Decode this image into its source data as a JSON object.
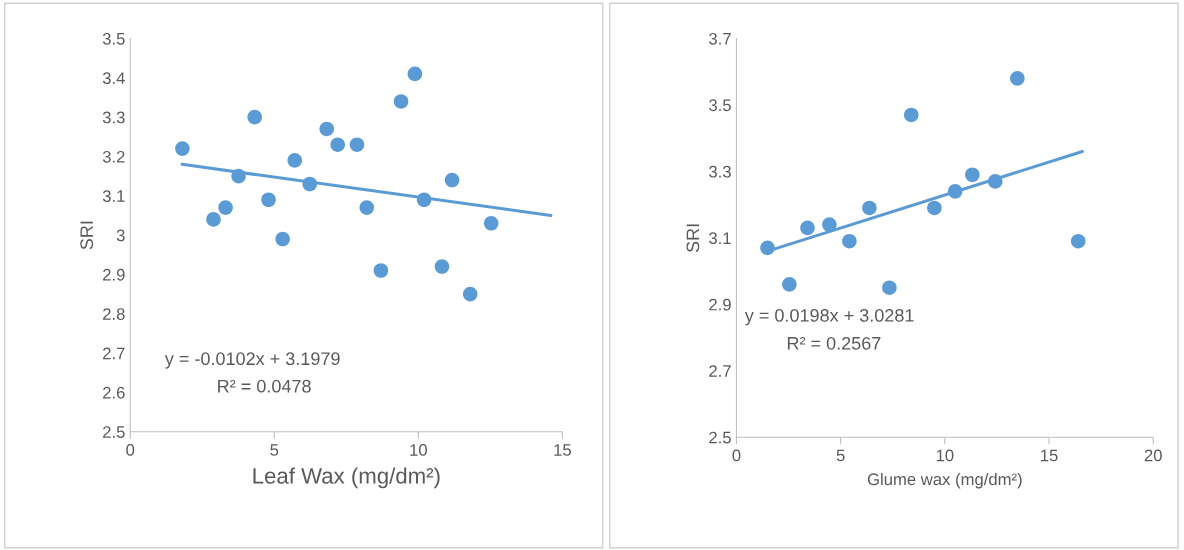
{
  "chart_data": [
    {
      "type": "scatter",
      "xlabel": "Leaf Wax (mg/dm²)",
      "ylabel": "SRI",
      "xlim": [
        0,
        15
      ],
      "xticks": [
        0,
        5,
        10,
        15
      ],
      "ylim": [
        2.5,
        3.5
      ],
      "yticks": [
        {
          "value": 2.5,
          "label": "2.5"
        },
        {
          "value": 2.6,
          "label": "2.6"
        },
        {
          "value": 2.7,
          "label": "2.7"
        },
        {
          "value": 2.8,
          "label": "2.8"
        },
        {
          "value": 2.9,
          "label": "2.9"
        },
        {
          "value": 3,
          "label": "3"
        },
        {
          "value": 3.1,
          "label": "3.1"
        },
        {
          "value": 3.2,
          "label": "3.2"
        },
        {
          "value": 3.3,
          "label": "3.3"
        },
        {
          "value": 3.4,
          "label": "3.4"
        },
        {
          "value": 3.5,
          "label": "3.5"
        }
      ],
      "grid": false,
      "legend": false,
      "series": [
        {
          "marker": "circle",
          "color": "#5b9bd5",
          "x": [
            1.81,
            2.89,
            3.31,
            3.76,
            4.32,
            4.8,
            5.29,
            5.71,
            6.23,
            6.82,
            7.2,
            7.87,
            8.21,
            8.7,
            9.4,
            9.88,
            10.2,
            10.82,
            11.17,
            11.8,
            12.53
          ],
          "values": [
            3.22,
            3.04,
            3.07,
            3.15,
            3.3,
            3.09,
            2.99,
            3.19,
            3.13,
            3.27,
            3.23,
            3.23,
            3.07,
            2.91,
            3.34,
            3.41,
            3.09,
            2.92,
            3.14,
            2.85,
            3.03
          ]
        },
        {
          "type": "line",
          "color": "#5b9bd5",
          "x": [
            1.8,
            14.6
          ],
          "values": [
            3.18,
            3.05
          ]
        }
      ],
      "annotations": [
        "y = -0.0102x + 3.1979",
        "R² = 0.0478"
      ]
    },
    {
      "type": "scatter",
      "xlabel": "Glume wax (mg/dm²)",
      "ylabel": "SRI",
      "xlim": [
        0,
        20
      ],
      "xticks": [
        0,
        5,
        10,
        15,
        20
      ],
      "ylim": [
        2.5,
        3.7
      ],
      "yticks": [
        2.5,
        2.7,
        2.9,
        3.1,
        3.3,
        3.5,
        3.7
      ],
      "grid": false,
      "legend": false,
      "series": [
        {
          "marker": "circle",
          "color": "#5b9bd5",
          "x": [
            1.49,
            2.54,
            3.41,
            4.46,
            5.42,
            6.38,
            7.34,
            8.39,
            9.5,
            10.5,
            11.32,
            12.42,
            13.48,
            16.4
          ],
          "values": [
            3.07,
            2.96,
            3.13,
            3.14,
            3.09,
            3.19,
            2.95,
            3.47,
            3.19,
            3.24,
            3.29,
            3.27,
            3.58,
            3.09
          ]
        },
        {
          "type": "line",
          "color": "#5b9bd5",
          "x": [
            1.5,
            16.6
          ],
          "values": [
            3.06,
            3.36
          ]
        }
      ],
      "annotations": [
        "y = 0.0198x + 3.0281",
        "R² = 0.2567"
      ]
    }
  ]
}
